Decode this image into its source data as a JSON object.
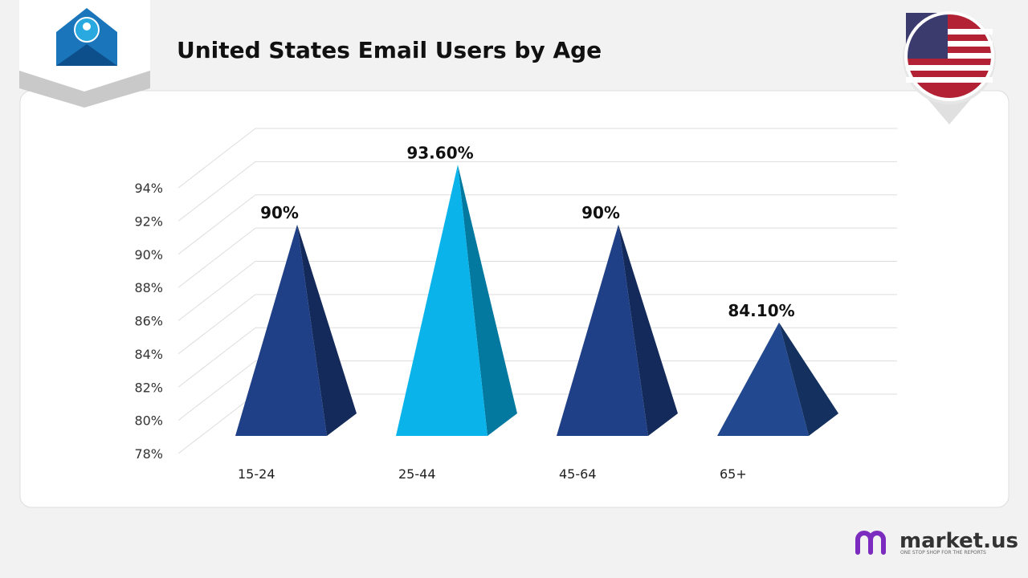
{
  "chart_data": {
    "type": "pyramid",
    "title": "United States Email Users by Age",
    "categories": [
      "15-24",
      "25-44",
      "45-64",
      "65+"
    ],
    "values": [
      90,
      93.6,
      90,
      84.1
    ],
    "value_labels": [
      "90%",
      "93.60%",
      "90%",
      "84.10%"
    ],
    "colors": [
      "#1f3f86",
      "#0ab4ea",
      "#1f3f86",
      "#22488f"
    ],
    "side_colors": [
      "#142a5a",
      "#04799f",
      "#142a5a",
      "#14305f"
    ],
    "ylim": [
      78,
      94
    ],
    "yticks": [
      {
        "value": 78,
        "label": "78%"
      },
      {
        "value": 80,
        "label": "80%"
      },
      {
        "value": 82,
        "label": "82%"
      },
      {
        "value": 84,
        "label": "84%"
      },
      {
        "value": 86,
        "label": "86%"
      },
      {
        "value": 88,
        "label": "88%"
      },
      {
        "value": 90,
        "label": "90%"
      },
      {
        "value": 92,
        "label": "92%"
      },
      {
        "value": 94,
        "label": "94%"
      }
    ],
    "grid": true
  },
  "logo": {
    "name": "market.us",
    "tagline": "ONE STOP SHOP FOR THE REPORTS"
  }
}
